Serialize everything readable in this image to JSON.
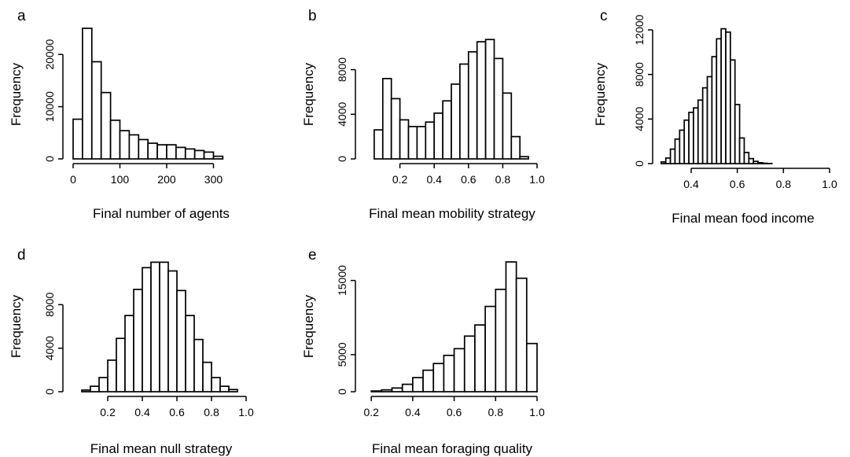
{
  "chart_data": [
    {
      "panel": "a",
      "type": "bar",
      "xlabel": "Final number of agents",
      "ylabel": "Frequency",
      "xticks": [
        0,
        100,
        200,
        300
      ],
      "yticks": [
        0,
        10000,
        20000
      ],
      "xlim": [
        0,
        390
      ],
      "ylim": [
        0,
        25000
      ],
      "bins": {
        "start": 0,
        "width": 20,
        "values": [
          7600,
          25000,
          18600,
          12700,
          7400,
          5400,
          4600,
          3700,
          3000,
          2700,
          2700,
          2200,
          1900,
          1600,
          1300,
          500
        ]
      }
    },
    {
      "panel": "b",
      "type": "bar",
      "xlabel": "Final mean mobility strategy",
      "ylabel": "Frequency",
      "xticks": [
        "0.2",
        "0.4",
        "0.6",
        "0.8",
        "1.0"
      ],
      "yticks": [
        0,
        4000,
        8000
      ],
      "xlim": [
        0.0,
        1.0
      ],
      "ylim": [
        0,
        11000
      ],
      "bins": {
        "start": 0.0,
        "width": 0.05,
        "values": [
          0,
          2600,
          7200,
          5400,
          3500,
          2900,
          2900,
          3300,
          4100,
          5200,
          6700,
          8500,
          9600,
          10500,
          10700,
          9000,
          5900,
          2000,
          200
        ]
      }
    },
    {
      "panel": "c",
      "type": "bar",
      "xlabel": "Final mean food income",
      "ylabel": "Frequency",
      "xticks": [
        "0.4",
        "0.6",
        "0.8",
        "1.0"
      ],
      "yticks": [
        0,
        4000,
        8000,
        12000
      ],
      "xlim": [
        0.25,
        1.0
      ],
      "ylim": [
        0,
        12000
      ],
      "bins": {
        "start": 0.25,
        "width": 0.02,
        "values": [
          0,
          150,
          500,
          1300,
          2200,
          3000,
          3900,
          4600,
          5000,
          5700,
          6800,
          7800,
          9600,
          11200,
          12100,
          11800,
          9300,
          5300,
          2300,
          1000,
          450,
          200,
          80,
          30,
          10
        ]
      }
    },
    {
      "panel": "d",
      "type": "bar",
      "xlabel": "Final mean null strategy",
      "ylabel": "Frequency",
      "xticks": [
        "0.2",
        "0.4",
        "0.6",
        "0.8",
        "1.0"
      ],
      "yticks": [
        0,
        4000,
        8000
      ],
      "xlim": [
        0.0,
        1.0
      ],
      "ylim": [
        0,
        12000
      ],
      "bins": {
        "start": 0.0,
        "width": 0.05,
        "values": [
          0,
          150,
          500,
          1300,
          2900,
          4900,
          7000,
          9400,
          11400,
          11900,
          11900,
          11100,
          9300,
          7000,
          4800,
          2700,
          1300,
          500,
          200
        ]
      }
    },
    {
      "panel": "e",
      "type": "bar",
      "xlabel": "Final mean foraging quality",
      "ylabel": "Frequency",
      "xticks": [
        "0.2",
        "0.4",
        "0.6",
        "0.8",
        "1.0"
      ],
      "yticks": [
        0,
        5000,
        15000
      ],
      "xlim": [
        0.15,
        1.0
      ],
      "ylim": [
        0,
        17500
      ],
      "bins": {
        "start": 0.15,
        "width": 0.05,
        "values": [
          0,
          100,
          250,
          500,
          1000,
          1900,
          2900,
          3800,
          4900,
          5800,
          7500,
          9000,
          11500,
          13800,
          17500,
          15300,
          6500
        ]
      }
    }
  ]
}
